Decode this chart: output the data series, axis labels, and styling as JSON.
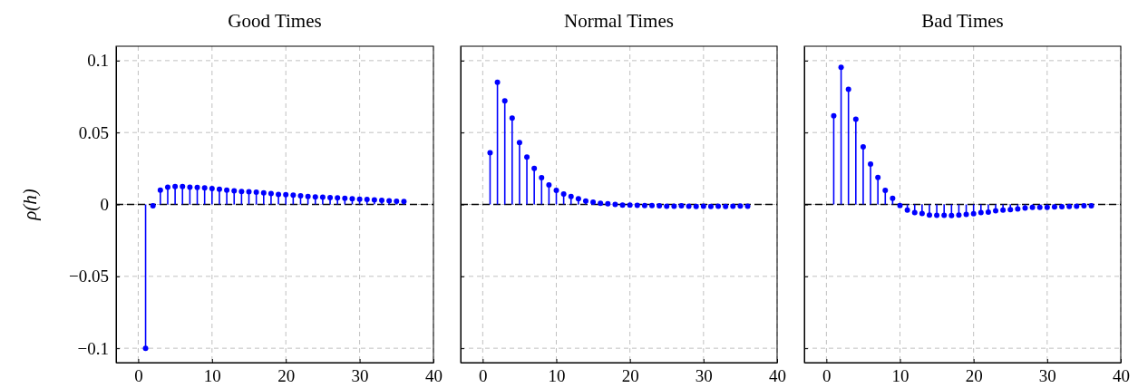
{
  "chart_data": [
    {
      "type": "lollipop",
      "title": "Good Times",
      "ylabel": "ρ(h)",
      "xlim": [
        -3,
        40
      ],
      "xticks": [
        0,
        10,
        20,
        30,
        40
      ],
      "ylim": [
        -0.11,
        0.11
      ],
      "yticks": [
        {
          "value": -0.1,
          "label": "−0.1"
        },
        {
          "value": -0.05,
          "label": "−0.05"
        },
        0,
        0.05,
        0.1
      ],
      "grid": true,
      "marker": "circle",
      "ref_lines": [
        {
          "axis": "y",
          "value": 0,
          "color": "#000000",
          "line_style": "dashed"
        }
      ],
      "x": [
        1,
        2,
        3,
        4,
        5,
        6,
        7,
        8,
        9,
        10,
        11,
        12,
        13,
        14,
        15,
        16,
        17,
        18,
        19,
        20,
        21,
        22,
        23,
        24,
        25,
        26,
        27,
        28,
        29,
        30,
        31,
        32,
        33,
        34,
        35,
        36
      ],
      "series": [
        {
          "color": "#0000ff",
          "values": [
            -0.1,
            -0.001,
            0.01,
            0.012,
            0.0125,
            0.0125,
            0.012,
            0.0118,
            0.0115,
            0.011,
            0.0105,
            0.01,
            0.0095,
            0.009,
            0.0088,
            0.0085,
            0.008,
            0.0075,
            0.007,
            0.0068,
            0.0065,
            0.006,
            0.0055,
            0.0052,
            0.005,
            0.0048,
            0.0045,
            0.0043,
            0.004,
            0.0036,
            0.0034,
            0.0031,
            0.0028,
            0.0025,
            0.0022,
            0.002
          ]
        }
      ]
    },
    {
      "type": "lollipop",
      "title": "Normal Times",
      "xlim": [
        -3,
        40
      ],
      "xticks": [
        0,
        10,
        20,
        30,
        40
      ],
      "ylim": [
        -0.11,
        0.11
      ],
      "yticks": [
        {
          "value": -0.1,
          "label": null
        },
        {
          "value": -0.05,
          "label": null
        },
        {
          "value": 0,
          "label": null
        },
        {
          "value": 0.05,
          "label": null
        },
        {
          "value": 0.1,
          "label": null
        }
      ],
      "grid": true,
      "marker": "circle",
      "tick_labels": "x",
      "ref_lines": [
        {
          "axis": "y",
          "value": 0,
          "color": "#000000",
          "line_style": "dashed"
        }
      ],
      "x": [
        1,
        2,
        3,
        4,
        5,
        6,
        7,
        8,
        9,
        10,
        11,
        12,
        13,
        14,
        15,
        16,
        17,
        18,
        19,
        20,
        21,
        22,
        23,
        24,
        25,
        26,
        27,
        28,
        29,
        30,
        31,
        32,
        33,
        34,
        35,
        36
      ],
      "series": [
        {
          "color": "#0000ff",
          "values": [
            0.036,
            0.085,
            0.072,
            0.06,
            0.043,
            0.033,
            0.025,
            0.0186,
            0.0135,
            0.0097,
            0.0072,
            0.0055,
            0.004,
            0.0023,
            0.0015,
            0.0008,
            0.0004,
            0,
            -0.0004,
            -0.0005,
            -0.0006,
            -0.0008,
            -0.0008,
            -0.001,
            -0.0012,
            -0.0012,
            -0.001,
            -0.0013,
            -0.0014,
            -0.0013,
            -0.0014,
            -0.0013,
            -0.0014,
            -0.0012,
            -0.0011,
            -0.0013
          ]
        }
      ]
    },
    {
      "type": "lollipop",
      "title": "Bad Times",
      "xlim": [
        -3,
        40
      ],
      "xticks": [
        0,
        10,
        20,
        30,
        40
      ],
      "ylim": [
        -0.11,
        0.11
      ],
      "yticks": [
        {
          "value": -0.1,
          "label": null
        },
        {
          "value": -0.05,
          "label": null
        },
        {
          "value": 0,
          "label": null
        },
        {
          "value": 0.05,
          "label": null
        },
        {
          "value": 0.1,
          "label": null
        }
      ],
      "grid": true,
      "marker": "circle",
      "tick_labels": "x",
      "ref_lines": [
        {
          "axis": "y",
          "value": 0,
          "color": "#000000",
          "line_style": "dashed"
        }
      ],
      "x": [
        1,
        2,
        3,
        4,
        5,
        6,
        7,
        8,
        9,
        10,
        11,
        12,
        13,
        14,
        15,
        16,
        17,
        18,
        19,
        20,
        21,
        22,
        23,
        24,
        25,
        26,
        27,
        28,
        29,
        30,
        31,
        32,
        33,
        34,
        35,
        36
      ],
      "series": [
        {
          "color": "#0000ff",
          "values": [
            0.0616,
            0.0954,
            0.08,
            0.0593,
            0.04,
            0.028,
            0.0188,
            0.0097,
            0.0042,
            -0.0008,
            -0.004,
            -0.0057,
            -0.0063,
            -0.0074,
            -0.0076,
            -0.0076,
            -0.0078,
            -0.0074,
            -0.007,
            -0.0065,
            -0.0057,
            -0.0053,
            -0.0044,
            -0.004,
            -0.0036,
            -0.0032,
            -0.0025,
            -0.0021,
            -0.0021,
            -0.002,
            -0.0018,
            -0.0016,
            -0.0014,
            -0.0012,
            -0.001,
            -0.001
          ]
        }
      ]
    }
  ]
}
